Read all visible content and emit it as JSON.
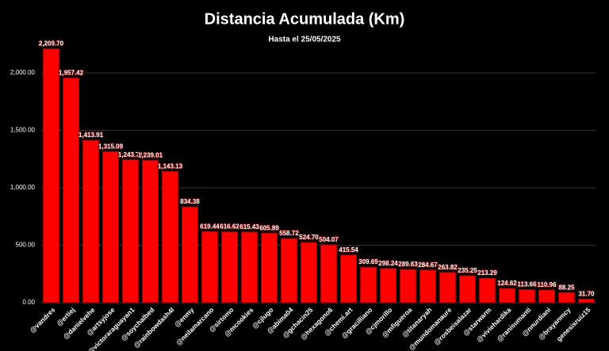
{
  "chart_data": {
    "type": "bar",
    "title": "Distancia Acumulada (Km)",
    "subtitle": "Hasta el 25/05/2025",
    "categories": [
      "@vandres",
      "@ertiej",
      "@danielvehe",
      "@artsyjose",
      "@victoraraguayan1",
      "@soychalbed",
      "@rainbowdash4l",
      "@enmy",
      "@neilamarcano",
      "@sirtomo",
      "@mcookies",
      "@cjlugo",
      "@abima04",
      "@gchacin25",
      "@hexagono6",
      "@chemi.art",
      "@gracilliano",
      "@cjmorillo",
      "@mfigueroa",
      "@titanaryah",
      "@mundomanaure",
      "@rosbeisalazar",
      "@starwarm",
      "@viviehardika",
      "@ranisumanti",
      "@nnurdiani",
      "@brayanmcy",
      "genesisruiz15"
    ],
    "values": [
      2209.7,
      1957.42,
      1413.91,
      1315.09,
      1243.71,
      1239.01,
      1143.13,
      834.38,
      619.44,
      616.62,
      615.43,
      605.89,
      558.72,
      524.7,
      504.07,
      415.54,
      309.69,
      298.24,
      289.63,
      284.67,
      263.82,
      235.25,
      213.29,
      124.62,
      113.66,
      110.96,
      88.25,
      31.7
    ],
    "value_labels": [
      "2,209.70",
      "1,957.42",
      "1,413.91",
      "1,315.09",
      "1,243.71",
      "1,239.01",
      "1,143.13",
      "834.38",
      "619.44",
      "616.62",
      "615.43",
      "605.89",
      "558.72",
      "524.70",
      "504.07",
      "415.54",
      "309.69",
      "298.24",
      "289.63",
      "284.67",
      "263.82",
      "235.25",
      "213.29",
      "124.62",
      "113.66",
      "110.96",
      "88.25",
      "31.70"
    ],
    "color": "#ff0000",
    "ylim": [
      0,
      2400
    ],
    "yticks": [
      {
        "value": 0,
        "label": "0.00"
      },
      {
        "value": 500,
        "label": "500.00"
      },
      {
        "value": 1000,
        "label": "1,000.00"
      },
      {
        "value": 1500,
        "label": "1,500.00"
      },
      {
        "value": 2000,
        "label": "2,000.00"
      }
    ],
    "grid": true
  }
}
